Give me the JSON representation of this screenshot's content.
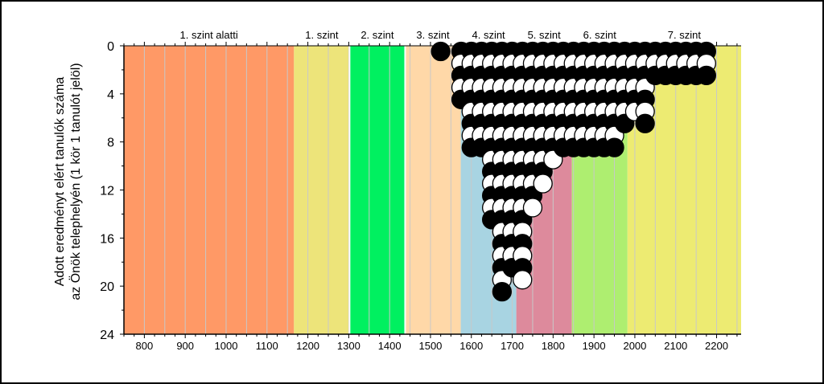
{
  "chart_data": {
    "type": "scatter",
    "title": "",
    "ylabel_lines": [
      "Adott eredményt elért tanulók száma",
      "az Önök telephelyén (1 kör 1 tanulót jelöl)"
    ],
    "xlabel": "",
    "xlim": [
      750,
      2260
    ],
    "ylim": [
      0,
      24
    ],
    "y_inverted": true,
    "x_ticks": [
      800,
      900,
      1000,
      1100,
      1200,
      1300,
      1400,
      1500,
      1600,
      1700,
      1800,
      1900,
      2000,
      2100,
      2200
    ],
    "y_ticks": [
      0,
      4,
      8,
      12,
      16,
      20,
      24
    ],
    "grid_x_step": 50,
    "bands": [
      {
        "label": "1. szint alatti",
        "from": 750,
        "to": 1166,
        "color": "#FF9966"
      },
      {
        "label": "1. szint",
        "from": 1166,
        "to": 1302,
        "color": "#EDE47A"
      },
      {
        "label": "2. szint",
        "from": 1302,
        "to": 1438,
        "color": "#00F060"
      },
      {
        "label": "3. szint",
        "from": 1438,
        "to": 1574,
        "color": "#FFD8A8"
      },
      {
        "label": "4. szint",
        "from": 1574,
        "to": 1710,
        "color": "#A8D4E2"
      },
      {
        "label": "5. szint",
        "from": 1710,
        "to": 1846,
        "color": "#DD8A9C"
      },
      {
        "label": "6. szint",
        "from": 1846,
        "to": 1982,
        "color": "#AEEE70"
      },
      {
        "label": "7. szint",
        "from": 1982,
        "to": 2260,
        "color": "#EDEB72"
      }
    ],
    "gap_lines": [
      1302,
      1438
    ],
    "series": [
      {
        "x": [
          1525,
          1575,
          1600,
          1625,
          1650,
          1675,
          1700,
          1725,
          1750,
          1775,
          1800,
          1825,
          1850,
          1875,
          1900,
          1925,
          1950,
          1975,
          2000,
          2025,
          2050,
          2075,
          2100,
          2125,
          2150,
          2175
        ],
        "y": [
          1,
          5,
          9,
          9,
          15,
          21,
          19,
          20,
          14,
          12,
          10,
          9,
          9,
          9,
          9,
          9,
          9,
          7,
          6,
          7,
          3,
          3,
          3,
          3,
          3,
          3
        ]
      }
    ]
  }
}
